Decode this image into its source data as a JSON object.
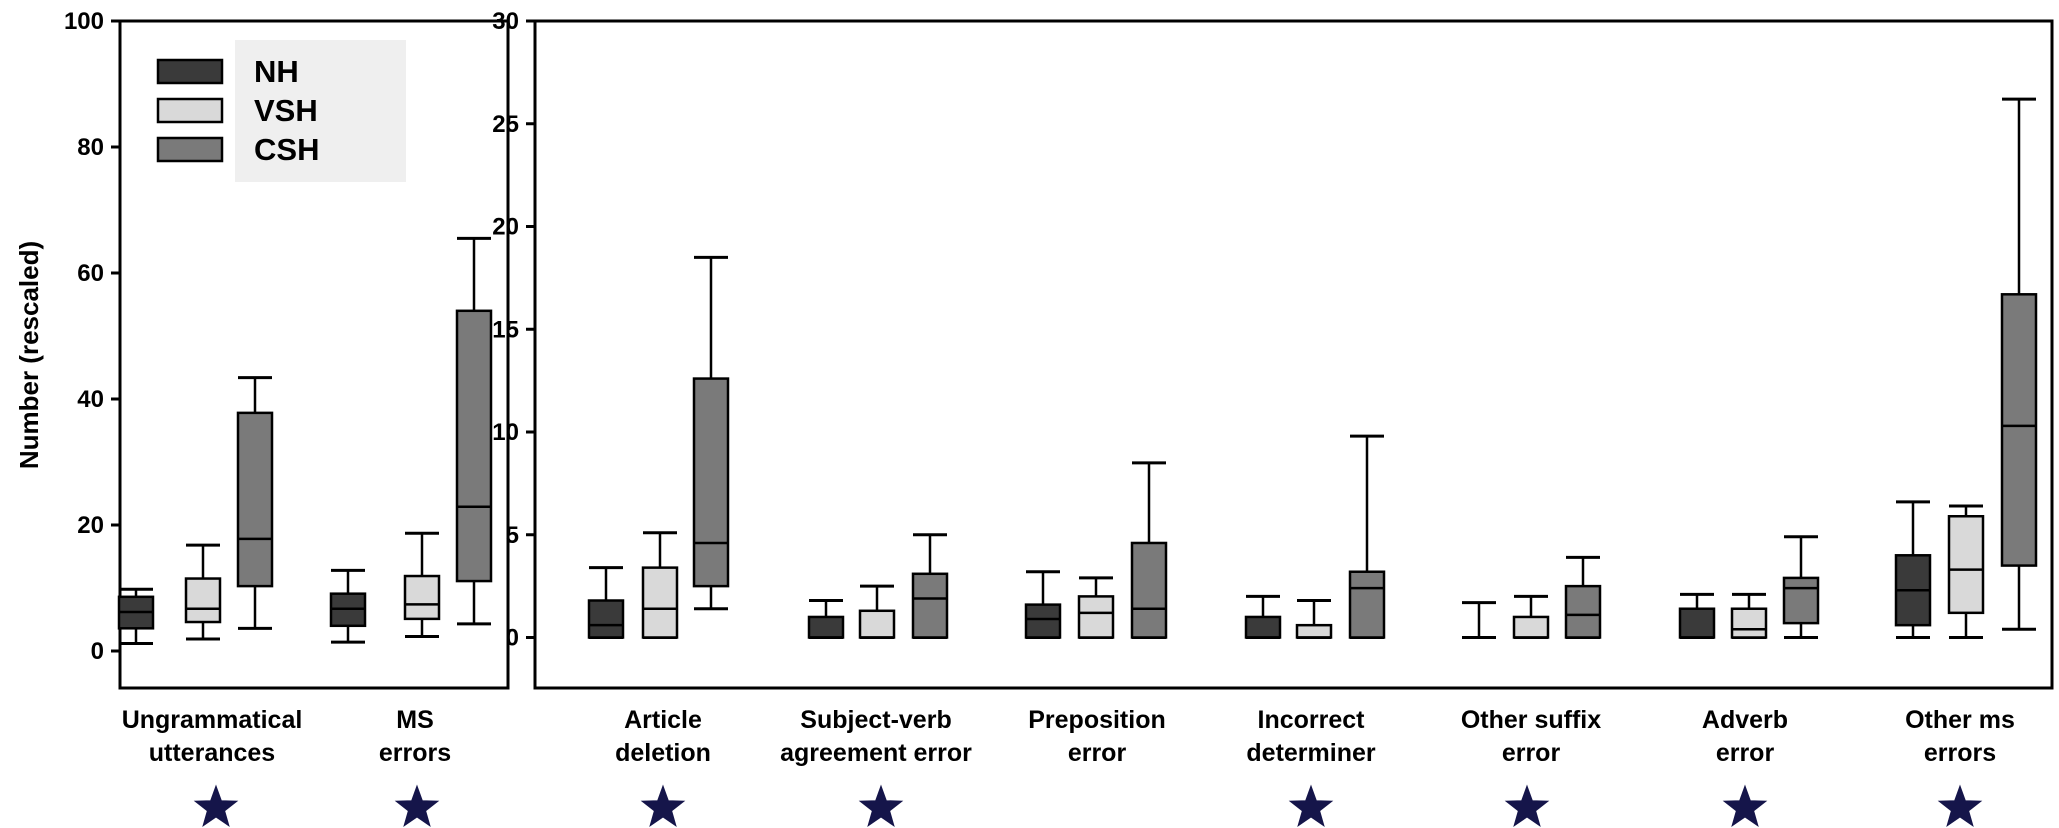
{
  "chart_data": [
    {
      "type": "box",
      "ylabel": "Number (rescaled)",
      "ylim": [
        0,
        100
      ],
      "yticks": [
        0,
        20,
        40,
        60,
        80,
        100
      ],
      "legend": {
        "position": "top-left",
        "entries": [
          {
            "name": "NH",
            "color": "#3a3a3a"
          },
          {
            "name": "VSH",
            "color": "#d9d9d9"
          },
          {
            "name": "CSH",
            "color": "#7a7a7a"
          }
        ]
      },
      "categories": [
        {
          "label": [
            "Ungrammatical",
            "utterances"
          ],
          "significant": true
        },
        {
          "label": [
            "MS",
            "errors"
          ],
          "significant": true
        }
      ],
      "series": [
        {
          "name": "NH",
          "boxes": [
            {
              "min": 1.2,
              "q1": 3.6,
              "median": 6.2,
              "q3": 8.6,
              "max": 9.8
            },
            {
              "min": 1.4,
              "q1": 4.0,
              "median": 6.7,
              "q3": 9.1,
              "max": 12.8
            }
          ]
        },
        {
          "name": "VSH",
          "boxes": [
            {
              "min": 1.9,
              "q1": 4.6,
              "median": 6.7,
              "q3": 11.5,
              "max": 16.8
            },
            {
              "min": 2.3,
              "q1": 5.1,
              "median": 7.4,
              "q3": 11.9,
              "max": 18.7
            }
          ]
        },
        {
          "name": "CSH",
          "boxes": [
            {
              "min": 3.6,
              "q1": 10.3,
              "median": 17.8,
              "q3": 37.8,
              "max": 43.4
            },
            {
              "min": 4.3,
              "q1": 11.1,
              "median": 22.9,
              "q3": 54.0,
              "max": 65.5
            }
          ]
        }
      ]
    },
    {
      "type": "box",
      "ylim": [
        0,
        30
      ],
      "yticks": [
        0,
        5,
        10,
        15,
        20,
        25,
        30
      ],
      "categories": [
        {
          "label": [
            "Article",
            "deletion"
          ],
          "significant": true
        },
        {
          "label": [
            "Subject-verb",
            "agreement error"
          ],
          "significant": true
        },
        {
          "label": [
            "Preposition",
            "error"
          ],
          "significant": false
        },
        {
          "label": [
            "Incorrect",
            "determiner"
          ],
          "significant": true
        },
        {
          "label": [
            "Other suffix",
            "error"
          ],
          "significant": true
        },
        {
          "label": [
            "Adverb",
            "error"
          ],
          "significant": true
        },
        {
          "label": [
            "Other ms",
            "errors"
          ],
          "significant": true
        }
      ],
      "series": [
        {
          "name": "NH",
          "boxes": [
            {
              "min": 0,
              "q1": 0,
              "median": 0.6,
              "q3": 1.8,
              "max": 3.4
            },
            {
              "min": 0,
              "q1": 0,
              "median": 0,
              "q3": 1.0,
              "max": 1.8
            },
            {
              "min": 0,
              "q1": 0,
              "median": 0.9,
              "q3": 1.6,
              "max": 3.2
            },
            {
              "min": 0,
              "q1": 0,
              "median": 0,
              "q3": 1.0,
              "max": 2.0
            },
            {
              "min": 0,
              "q1": 0,
              "median": 0,
              "q3": 0,
              "max": 1.7
            },
            {
              "min": 0,
              "q1": 0,
              "median": 0,
              "q3": 1.4,
              "max": 2.1
            },
            {
              "min": 0,
              "q1": 0.6,
              "median": 2.3,
              "q3": 4.0,
              "max": 6.6
            }
          ]
        },
        {
          "name": "VSH",
          "boxes": [
            {
              "min": 0,
              "q1": 0,
              "median": 1.4,
              "q3": 3.4,
              "max": 5.1
            },
            {
              "min": 0,
              "q1": 0,
              "median": 0,
              "q3": 1.3,
              "max": 2.5
            },
            {
              "min": 0,
              "q1": 0,
              "median": 1.2,
              "q3": 2.0,
              "max": 2.9
            },
            {
              "min": 0,
              "q1": 0,
              "median": 0,
              "q3": 0.6,
              "max": 1.8
            },
            {
              "min": 0,
              "q1": 0,
              "median": 0,
              "q3": 1.0,
              "max": 2.0
            },
            {
              "min": 0,
              "q1": 0,
              "median": 0.4,
              "q3": 1.4,
              "max": 2.1
            },
            {
              "min": 0,
              "q1": 1.2,
              "median": 3.3,
              "q3": 5.9,
              "max": 6.4
            }
          ]
        },
        {
          "name": "CSH",
          "boxes": [
            {
              "min": 1.4,
              "q1": 2.5,
              "median": 4.6,
              "q3": 12.6,
              "max": 18.5
            },
            {
              "min": 0,
              "q1": 0,
              "median": 1.9,
              "q3": 3.1,
              "max": 5.0
            },
            {
              "min": 0,
              "q1": 0,
              "median": 1.4,
              "q3": 4.6,
              "max": 8.5
            },
            {
              "min": 0,
              "q1": 0,
              "median": 2.4,
              "q3": 3.2,
              "max": 9.8
            },
            {
              "min": 0,
              "q1": 0,
              "median": 1.1,
              "q3": 2.5,
              "max": 3.9
            },
            {
              "min": 0,
              "q1": 0.7,
              "median": 2.4,
              "q3": 2.9,
              "max": 4.9
            },
            {
              "min": 0.4,
              "q1": 3.5,
              "median": 10.3,
              "q3": 16.7,
              "max": 26.2
            }
          ]
        }
      ]
    }
  ]
}
